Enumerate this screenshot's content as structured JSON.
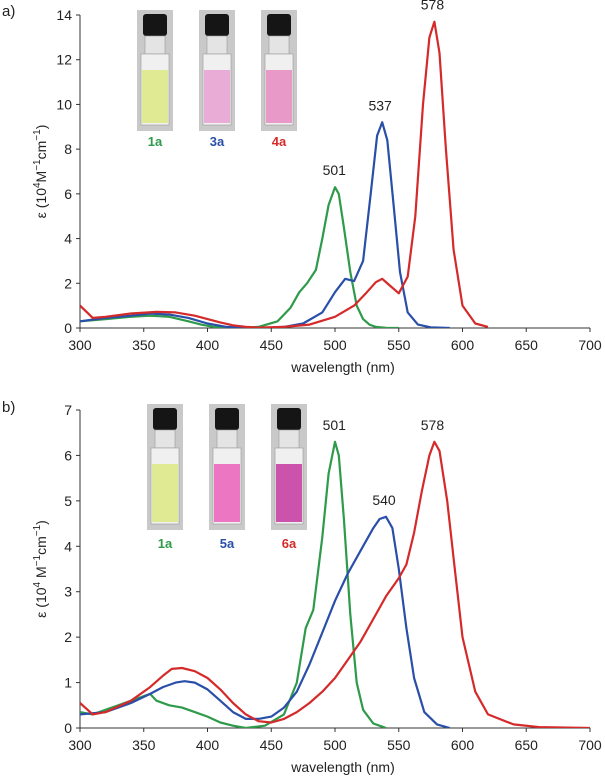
{
  "chart_data": [
    {
      "type": "line",
      "panel_label": "a)",
      "xlabel": "wavelength (nm)",
      "ylabel_main": "ε (10",
      "ylabel_exp1": "4",
      "ylabel_mid": "M",
      "ylabel_exp2": "−1",
      "ylabel_unit": "cm",
      "ylabel_exp3": "−1",
      "ylabel_end": ")",
      "xlim": [
        300,
        700
      ],
      "ylim": [
        0,
        14
      ],
      "xticks": [
        300,
        350,
        400,
        450,
        500,
        550,
        600,
        650,
        700
      ],
      "yticks": [
        0,
        2,
        4,
        6,
        8,
        10,
        12,
        14
      ],
      "peak_labels": [
        {
          "text": "501",
          "x": 501,
          "y": 6.3
        },
        {
          "text": "537",
          "x": 537,
          "y": 9.2
        },
        {
          "text": "578",
          "x": 578,
          "y": 13.7
        }
      ],
      "vials": [
        {
          "label": "1a",
          "color": "#2e9a4a",
          "liquid": "#dde98c"
        },
        {
          "label": "3a",
          "color": "#2a4fa8",
          "liquid": "#e8a8d4"
        },
        {
          "label": "4a",
          "color": "#d42a2a",
          "liquid": "#e794c4"
        }
      ],
      "series": [
        {
          "name": "1a",
          "color": "#2e9a4a",
          "x": [
            300,
            320,
            340,
            355,
            370,
            385,
            395,
            405,
            415,
            425,
            440,
            455,
            465,
            472,
            478,
            485,
            490,
            495,
            500,
            503,
            507,
            512,
            517,
            522,
            527,
            532,
            540,
            550
          ],
          "y": [
            0.3,
            0.4,
            0.5,
            0.55,
            0.5,
            0.3,
            0.15,
            0.05,
            0.01,
            0.0,
            0.05,
            0.3,
            0.9,
            1.6,
            2.0,
            2.6,
            4.0,
            5.5,
            6.3,
            6.0,
            4.5,
            2.5,
            1.0,
            0.4,
            0.15,
            0.05,
            0.01,
            0.0
          ]
        },
        {
          "name": "3a",
          "color": "#2a4fa8",
          "x": [
            300,
            320,
            340,
            355,
            370,
            385,
            400,
            415,
            430,
            445,
            460,
            475,
            490,
            500,
            508,
            515,
            522,
            528,
            533,
            537,
            541,
            546,
            551,
            557,
            565,
            575,
            590
          ],
          "y": [
            0.3,
            0.45,
            0.55,
            0.65,
            0.6,
            0.45,
            0.2,
            0.05,
            0.0,
            0.0,
            0.05,
            0.2,
            0.7,
            1.6,
            2.2,
            2.1,
            3.0,
            6.0,
            8.6,
            9.2,
            8.4,
            5.5,
            2.5,
            0.7,
            0.15,
            0.03,
            0.0
          ]
        },
        {
          "name": "4a",
          "color": "#d42a2a",
          "x": [
            300,
            310,
            320,
            340,
            360,
            375,
            390,
            400,
            410,
            420,
            430,
            440,
            460,
            480,
            500,
            515,
            525,
            532,
            537,
            543,
            550,
            557,
            563,
            569,
            574,
            578,
            582,
            587,
            593,
            600,
            610,
            620
          ],
          "y": [
            1.0,
            0.45,
            0.5,
            0.65,
            0.72,
            0.7,
            0.55,
            0.4,
            0.25,
            0.12,
            0.05,
            0.02,
            0.05,
            0.15,
            0.5,
            1.0,
            1.6,
            2.05,
            2.2,
            1.9,
            1.55,
            2.3,
            5.0,
            10.0,
            13.0,
            13.7,
            12.3,
            8.0,
            3.5,
            1.0,
            0.2,
            0.05
          ]
        }
      ]
    },
    {
      "type": "line",
      "panel_label": "b)",
      "xlabel": "wavelength (nm)",
      "ylabel_main": "ε (10",
      "ylabel_exp1": "4",
      "ylabel_mid": " M",
      "ylabel_exp2": "−1",
      "ylabel_unit": "cm",
      "ylabel_exp3": "−1",
      "ylabel_end": ")",
      "xlim": [
        300,
        700
      ],
      "ylim": [
        0,
        7
      ],
      "xticks": [
        300,
        350,
        400,
        450,
        500,
        550,
        600,
        650,
        700
      ],
      "yticks": [
        0,
        1,
        2,
        3,
        4,
        5,
        6,
        7
      ],
      "peak_labels": [
        {
          "text": "501",
          "x": 501,
          "y": 6.3
        },
        {
          "text": "540",
          "x": 540,
          "y": 4.65
        },
        {
          "text": "578",
          "x": 578,
          "y": 6.3
        }
      ],
      "vials": [
        {
          "label": "1a",
          "color": "#2e9a4a",
          "liquid": "#dde98c"
        },
        {
          "label": "5a",
          "color": "#2a4fa8",
          "liquid": "#ec6fc0"
        },
        {
          "label": "6a",
          "color": "#d42a2a",
          "liquid": "#c84aa8"
        }
      ],
      "series": [
        {
          "name": "1a",
          "color": "#2e9a4a",
          "x": [
            300,
            310,
            320,
            330,
            340,
            350,
            355,
            360,
            370,
            380,
            390,
            400,
            410,
            420,
            430,
            445,
            460,
            470,
            477,
            483,
            490,
            495,
            500,
            503,
            507,
            512,
            517,
            522,
            530,
            540
          ],
          "y": [
            0.35,
            0.3,
            0.4,
            0.5,
            0.6,
            0.7,
            0.75,
            0.6,
            0.5,
            0.45,
            0.35,
            0.25,
            0.12,
            0.05,
            0.0,
            0.05,
            0.3,
            1.0,
            2.2,
            2.6,
            4.2,
            5.6,
            6.3,
            6.0,
            4.6,
            2.5,
            1.0,
            0.4,
            0.1,
            0.0
          ]
        },
        {
          "name": "5a",
          "color": "#2a4fa8",
          "x": [
            300,
            320,
            340,
            355,
            365,
            375,
            382,
            390,
            400,
            410,
            420,
            430,
            440,
            450,
            460,
            470,
            480,
            490,
            500,
            510,
            520,
            530,
            535,
            540,
            545,
            550,
            556,
            562,
            570,
            580,
            590
          ],
          "y": [
            0.3,
            0.35,
            0.55,
            0.75,
            0.9,
            1.0,
            1.03,
            1.0,
            0.85,
            0.6,
            0.35,
            0.2,
            0.2,
            0.25,
            0.45,
            0.8,
            1.4,
            2.1,
            2.8,
            3.4,
            3.9,
            4.4,
            4.6,
            4.65,
            4.4,
            3.5,
            2.2,
            1.1,
            0.35,
            0.08,
            0.0
          ]
        },
        {
          "name": "6a",
          "color": "#d42a2a",
          "x": [
            300,
            310,
            320,
            340,
            355,
            365,
            372,
            380,
            390,
            400,
            410,
            420,
            430,
            440,
            450,
            460,
            470,
            480,
            490,
            500,
            510,
            520,
            530,
            540,
            550,
            556,
            562,
            568,
            574,
            578,
            582,
            588,
            594,
            600,
            610,
            620,
            640,
            660,
            700
          ],
          "y": [
            0.55,
            0.3,
            0.35,
            0.6,
            0.9,
            1.15,
            1.3,
            1.32,
            1.25,
            1.1,
            0.85,
            0.55,
            0.3,
            0.15,
            0.12,
            0.2,
            0.35,
            0.55,
            0.8,
            1.1,
            1.5,
            1.9,
            2.4,
            2.9,
            3.3,
            3.6,
            4.3,
            5.2,
            6.0,
            6.3,
            6.1,
            5.0,
            3.5,
            2.0,
            0.8,
            0.3,
            0.08,
            0.02,
            0.0
          ]
        }
      ]
    }
  ]
}
